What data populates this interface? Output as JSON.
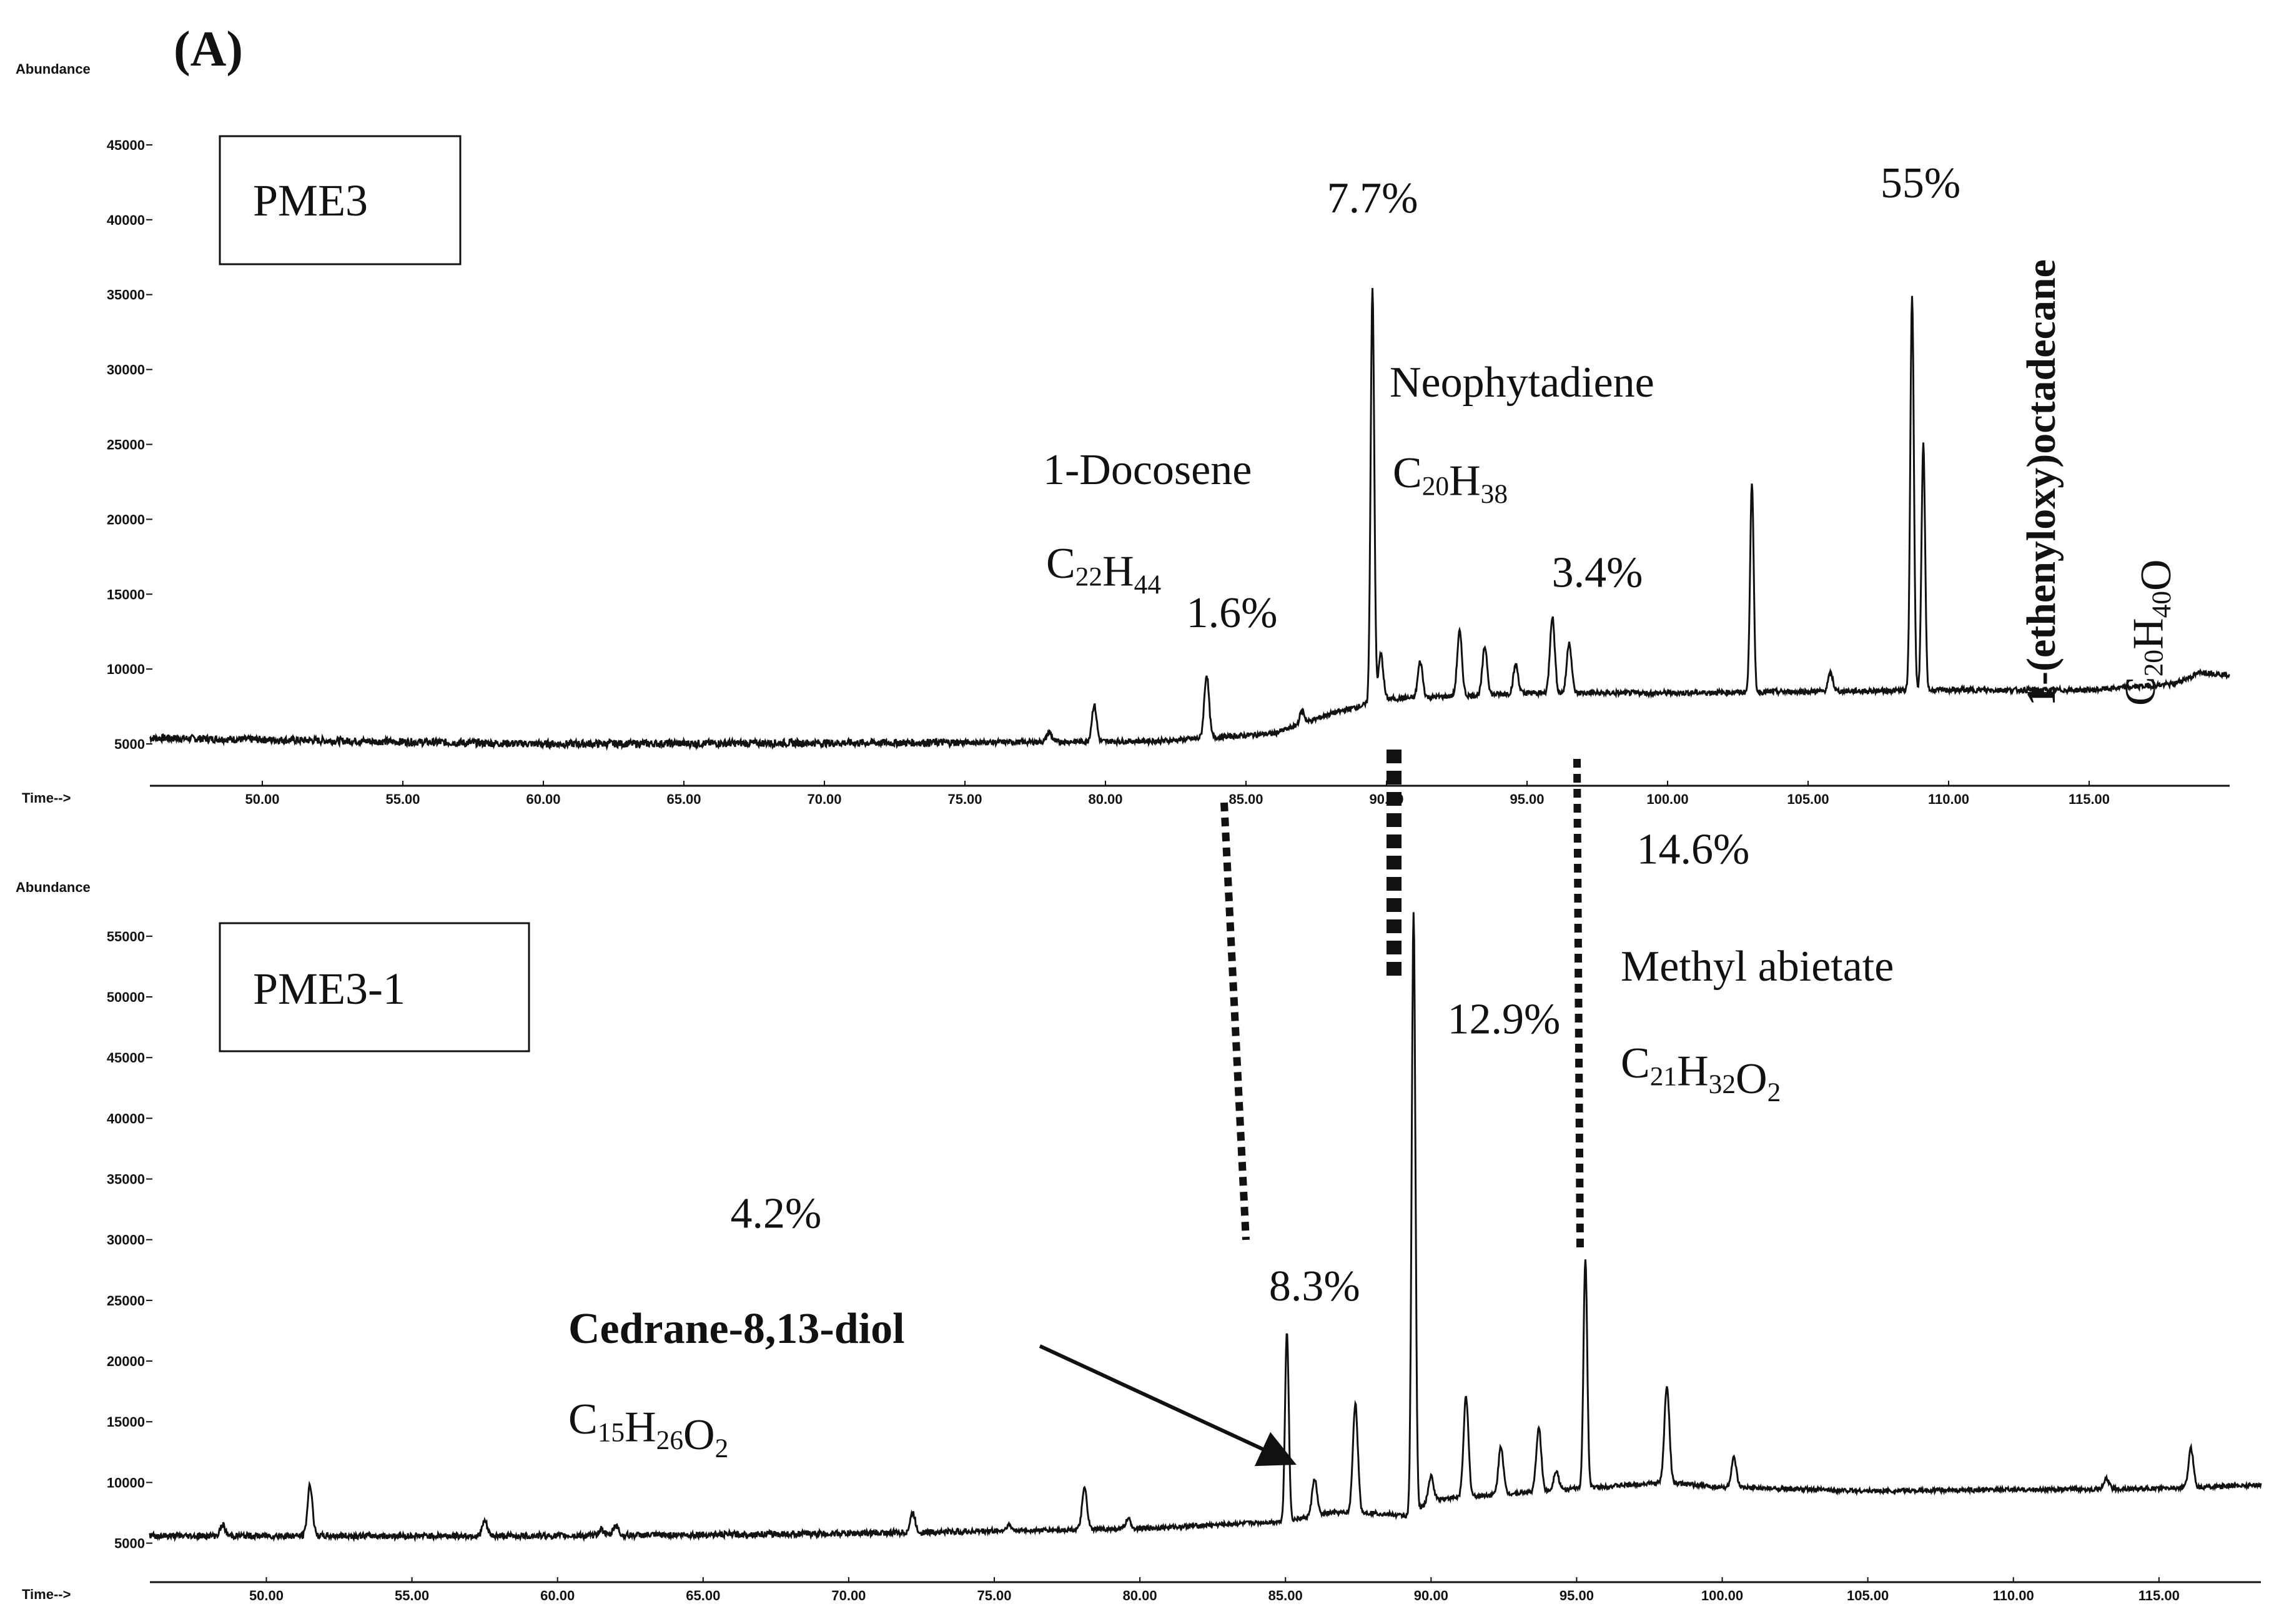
{
  "figure_label": "(A)",
  "chart_data": [
    {
      "type": "line",
      "panel_label": "PME3",
      "ylabel": "Abundance",
      "xlabel": "Time-->",
      "xlim": [
        46,
        120
      ],
      "ylim": [
        4000,
        48000
      ],
      "x_ticks": [
        "50.00",
        "55.00",
        "60.00",
        "65.00",
        "70.00",
        "75.00",
        "80.00",
        "85.00",
        "90.00",
        "95.00",
        "100.00",
        "105.00",
        "110.00",
        "115.00"
      ],
      "y_ticks": [
        "5000",
        "10000",
        "15000",
        "20000",
        "25000",
        "30000",
        "35000",
        "40000",
        "45000"
      ],
      "baseline": [
        [
          46,
          5400
        ],
        [
          60,
          5000
        ],
        [
          75,
          5100
        ],
        [
          82,
          5200
        ],
        [
          86,
          5700
        ],
        [
          88,
          7000
        ],
        [
          90,
          8000
        ],
        [
          95,
          8400
        ],
        [
          100,
          8400
        ],
        [
          105,
          8500
        ],
        [
          110,
          8600
        ],
        [
          115,
          8600
        ],
        [
          118,
          9000
        ],
        [
          119,
          9800
        ],
        [
          120,
          9600
        ]
      ],
      "peaks": [
        [
          78,
          5800
        ],
        [
          79.6,
          7600
        ],
        [
          83.6,
          9600
        ],
        [
          87,
          7200
        ],
        [
          89.5,
          35500
        ],
        [
          89.8,
          11000
        ],
        [
          91.2,
          10500
        ],
        [
          92.6,
          12500
        ],
        [
          93.5,
          11500
        ],
        [
          94.6,
          10300
        ],
        [
          95.9,
          13500
        ],
        [
          96.5,
          11800
        ],
        [
          103,
          22500
        ],
        [
          105.8,
          9700
        ],
        [
          108.7,
          35000
        ],
        [
          109.1,
          25000
        ]
      ],
      "percent_labels": [
        {
          "x": 89.5,
          "y": 40500,
          "text": "7.7%"
        },
        {
          "x": 84.5,
          "y": 12800,
          "text": "1.6%"
        },
        {
          "x": 97.5,
          "y": 15500,
          "text": "3.4%"
        },
        {
          "x": 109,
          "y": 41500,
          "text": "55%"
        }
      ],
      "compounds": [
        {
          "name": "1-Docosene",
          "formula_parts": [
            "C",
            "22",
            "H",
            "44"
          ]
        },
        {
          "name": "Neophytadiene",
          "formula_parts": [
            "C",
            "20",
            "H",
            "38"
          ]
        },
        {
          "name": "1-(ethenyloxy)octadecane",
          "formula_parts": [
            "C",
            "20",
            "H",
            "40",
            "O"
          ]
        }
      ]
    },
    {
      "type": "line",
      "panel_label": "PME3-1",
      "ylabel": "Abundance",
      "xlabel": "Time-->",
      "xlim": [
        46,
        118.5
      ],
      "ylim": [
        4000,
        57000
      ],
      "x_ticks": [
        "50.00",
        "55.00",
        "60.00",
        "65.00",
        "70.00",
        "75.00",
        "80.00",
        "85.00",
        "90.00",
        "95.00",
        "100.00",
        "105.00",
        "110.00",
        "115.00"
      ],
      "y_ticks": [
        "5000",
        "10000",
        "15000",
        "20000",
        "25000",
        "30000",
        "35000",
        "40000",
        "45000",
        "50000",
        "55000"
      ],
      "baseline": [
        [
          46,
          5600
        ],
        [
          60,
          5600
        ],
        [
          70,
          5800
        ],
        [
          80,
          6200
        ],
        [
          85,
          6800
        ],
        [
          86.5,
          7500
        ],
        [
          88,
          7500
        ],
        [
          89.3,
          7200
        ],
        [
          90,
          8600
        ],
        [
          95,
          9500
        ],
        [
          98,
          10000
        ],
        [
          100,
          9600
        ],
        [
          105,
          9300
        ],
        [
          110,
          9400
        ],
        [
          115,
          9500
        ],
        [
          118.5,
          9800
        ]
      ],
      "peaks": [
        [
          48.5,
          6500
        ],
        [
          51.5,
          9800
        ],
        [
          57.5,
          6800
        ],
        [
          61.5,
          6200
        ],
        [
          62,
          6500
        ],
        [
          72.2,
          7500
        ],
        [
          75.5,
          6500
        ],
        [
          78.1,
          9500
        ],
        [
          79.6,
          7000
        ],
        [
          85.05,
          22500
        ],
        [
          86,
          10300
        ],
        [
          87.4,
          16500
        ],
        [
          89.4,
          57000
        ],
        [
          90,
          10500
        ],
        [
          91.2,
          17000
        ],
        [
          92.4,
          13000
        ],
        [
          93.7,
          14500
        ],
        [
          94.3,
          11000
        ],
        [
          95.3,
          28500
        ],
        [
          98.1,
          18000
        ],
        [
          100.4,
          12000
        ],
        [
          113.2,
          10300
        ],
        [
          116.1,
          12800
        ]
      ],
      "percent_labels": [
        {
          "x": 67.5,
          "y": 31000,
          "text": "4.2%"
        },
        {
          "x": 86,
          "y": 25000,
          "text": "8.3%"
        },
        {
          "x": 92.5,
          "y": 47000,
          "text": "12.9%"
        },
        {
          "x": 99,
          "y": 61000,
          "text": "14.6%"
        }
      ],
      "compounds": [
        {
          "name": "Cedrane-8,13-diol",
          "formula_parts": [
            "C",
            "15",
            "H",
            "26",
            "O",
            "2"
          ]
        },
        {
          "name": "Methyl abietate",
          "formula_parts": [
            "C",
            "21",
            "H",
            "32",
            "O",
            "2"
          ]
        }
      ]
    }
  ]
}
